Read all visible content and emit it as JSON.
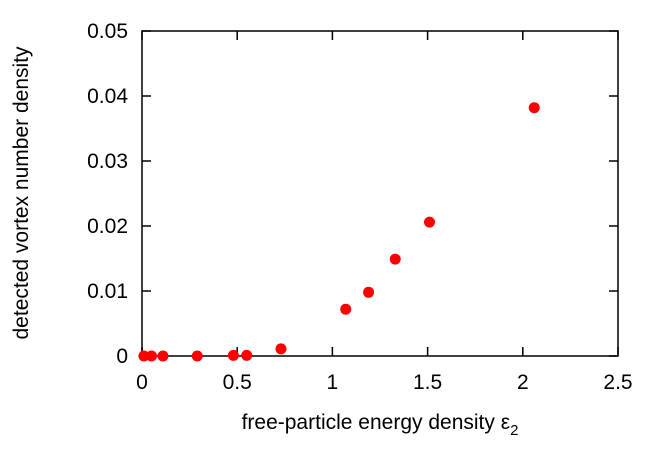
{
  "chart_data": {
    "type": "scatter",
    "xlabel": "free-particle energy density ε",
    "xlabel_subscript": "2",
    "ylabel": "detected vortex number density",
    "xlim": [
      0,
      2.5
    ],
    "ylim": [
      0,
      0.05
    ],
    "xticks": [
      "0",
      "0.5",
      "1",
      "1.5",
      "2",
      "2.5"
    ],
    "yticks": [
      "0",
      "0.01",
      "0.02",
      "0.03",
      "0.04",
      "0.05"
    ],
    "grid": false,
    "marker_color": "#ff0000",
    "series": [
      {
        "x": [
          0.01,
          0.05,
          0.11,
          0.29,
          0.48,
          0.55,
          0.73,
          1.07,
          1.19,
          1.33,
          1.51,
          2.06
        ],
        "y": [
          0.0,
          0.0,
          0.0,
          0.0,
          0.0001,
          0.0001,
          0.0011,
          0.0072,
          0.0098,
          0.0149,
          0.0206,
          0.0382
        ]
      }
    ]
  }
}
